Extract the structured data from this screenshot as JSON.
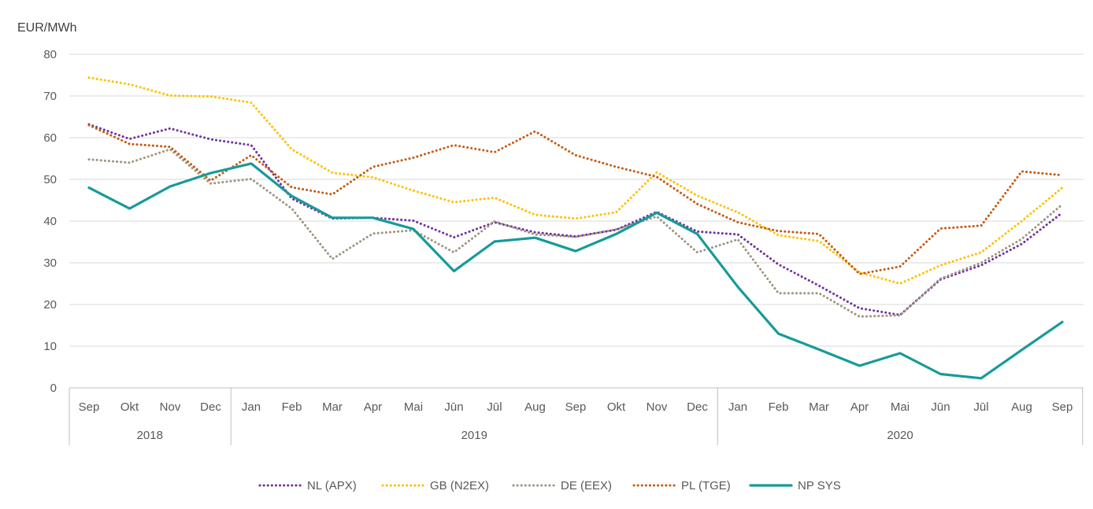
{
  "chart_data": {
    "type": "line",
    "ylabel": "EUR/MWh",
    "ylim": [
      0,
      80
    ],
    "yticks": [
      "0",
      "10",
      "20",
      "30",
      "40",
      "50",
      "60",
      "70",
      "80"
    ],
    "grid": "horizontal",
    "legend_position": "bottom",
    "categories": [
      "Sep",
      "Okt",
      "Nov",
      "Dec",
      "Jan",
      "Feb",
      "Mar",
      "Apr",
      "Mai",
      "Jūn",
      "Jūl",
      "Aug",
      "Sep",
      "Okt",
      "Nov",
      "Dec",
      "Jan",
      "Feb",
      "Mar",
      "Apr",
      "Mai",
      "Jūn",
      "Jūl",
      "Aug",
      "Sep"
    ],
    "years": [
      {
        "label": "2018",
        "span": 4
      },
      {
        "label": "2019",
        "span": 12
      },
      {
        "label": "2020",
        "span": 9
      }
    ],
    "series": [
      {
        "name": "NL (APX)",
        "color": "#7030A0",
        "style": "dotted",
        "values": [
          63.2,
          59.7,
          62.2,
          59.6,
          58.2,
          45.4,
          40.6,
          40.8,
          40.1,
          36.1,
          39.7,
          37.3,
          36.3,
          37.9,
          42.2,
          37.5,
          36.8,
          29.6,
          24.5,
          19.1,
          17.5,
          26.0,
          29.4,
          34.5,
          42.0
        ]
      },
      {
        "name": "GB (N2EX)",
        "color": "#FFC000",
        "style": "dotted",
        "values": [
          74.4,
          72.8,
          70.1,
          69.9,
          68.4,
          57.2,
          51.6,
          50.5,
          47.3,
          44.5,
          45.6,
          41.5,
          40.6,
          42.1,
          51.7,
          46.1,
          42.1,
          36.6,
          35.2,
          27.7,
          25.0,
          29.4,
          32.5,
          40.0,
          48.0
        ]
      },
      {
        "name": "DE (EEX)",
        "color": "#9E9480",
        "style": "dotted",
        "values": [
          54.8,
          54.0,
          57.2,
          49.0,
          50.1,
          43.0,
          30.9,
          37.0,
          37.8,
          32.5,
          39.9,
          36.8,
          36.2,
          38.0,
          41.1,
          32.5,
          35.6,
          22.7,
          22.7,
          17.1,
          17.4,
          26.2,
          30.0,
          35.7,
          44.0
        ]
      },
      {
        "name": "PL (TGE)",
        "color": "#C55A11",
        "style": "dotted",
        "values": [
          63.0,
          58.5,
          57.8,
          49.7,
          55.8,
          48.1,
          46.4,
          53.0,
          55.2,
          58.2,
          56.5,
          61.5,
          55.8,
          53.0,
          50.6,
          44.1,
          39.7,
          37.6,
          36.9,
          27.3,
          29.1,
          38.2,
          38.9,
          51.9,
          51.0
        ]
      },
      {
        "name": "NP SYS",
        "color": "#179A9A",
        "style": "solid",
        "values": [
          48.0,
          43.0,
          48.3,
          51.5,
          53.8,
          46.0,
          40.8,
          40.8,
          38.1,
          28.0,
          35.1,
          36.0,
          32.8,
          36.9,
          42.0,
          36.9,
          24.2,
          13.0,
          9.2,
          5.3,
          8.3,
          3.3,
          2.3,
          9.1,
          15.8
        ]
      }
    ]
  }
}
